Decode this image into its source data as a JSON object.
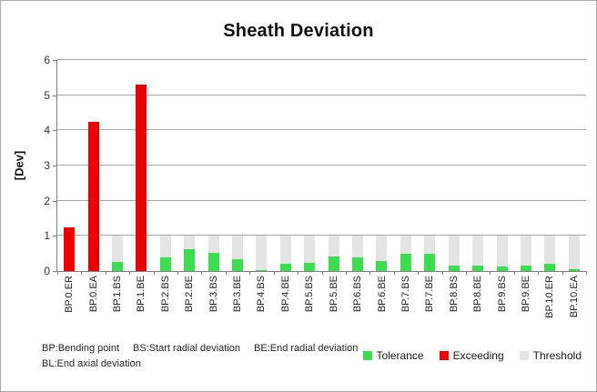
{
  "chart_data": {
    "type": "bar",
    "title": "Sheath Deviation",
    "xlabel": "",
    "ylabel": "[Dev]",
    "ylim": [
      0,
      6
    ],
    "ytick_step": 1,
    "grid": true,
    "legend_position": "bottom-right",
    "categories": [
      "BP.0.ER",
      "BP.0.EA",
      "BP.1.BS",
      "BP.1.BE",
      "BP.2.BS",
      "BP.2.BE",
      "BP.3.BS",
      "BP.3.BE",
      "BP.4.BS",
      "BP.4.BE",
      "BP.5.BS",
      "BP.5.BE",
      "BP.6.BS",
      "BP.6.BE",
      "BP.7.BS",
      "BP.7.BE",
      "BP.8.BS",
      "BP.8.BE",
      "BP.9.BS",
      "BP.9.BE",
      "BP.10.ER",
      "BP.10.EA"
    ],
    "series": [
      {
        "name": "Tolerance",
        "color": "#3edc50",
        "values": [
          0,
          0,
          0.27,
          0,
          0.38,
          0.62,
          0.53,
          0.33,
          0.03,
          0.2,
          0.24,
          0.42,
          0.4,
          0.28,
          0.48,
          0.5,
          0.16,
          0.16,
          0.13,
          0.16,
          0.21,
          0.05
        ]
      },
      {
        "name": "Exceeding",
        "color": "#ee0000",
        "values": [
          1.25,
          4.25,
          0,
          5.3,
          0,
          0,
          0,
          0,
          0,
          0,
          0,
          0,
          0,
          0,
          0,
          0,
          0,
          0,
          0,
          0,
          0,
          0
        ]
      },
      {
        "name": "Threshold",
        "color": "#e4e4e4",
        "values": [
          1,
          1,
          1,
          1,
          1,
          1,
          1,
          1,
          1,
          1,
          1,
          1,
          1,
          1,
          1,
          1,
          1,
          1,
          1,
          1,
          1,
          1
        ]
      }
    ]
  },
  "footer": {
    "line1_parts": [
      "BP:Bending point",
      "BS:Start radial deviation",
      "BE:End radial deviation"
    ],
    "line2": "BL:End axial deviation"
  }
}
